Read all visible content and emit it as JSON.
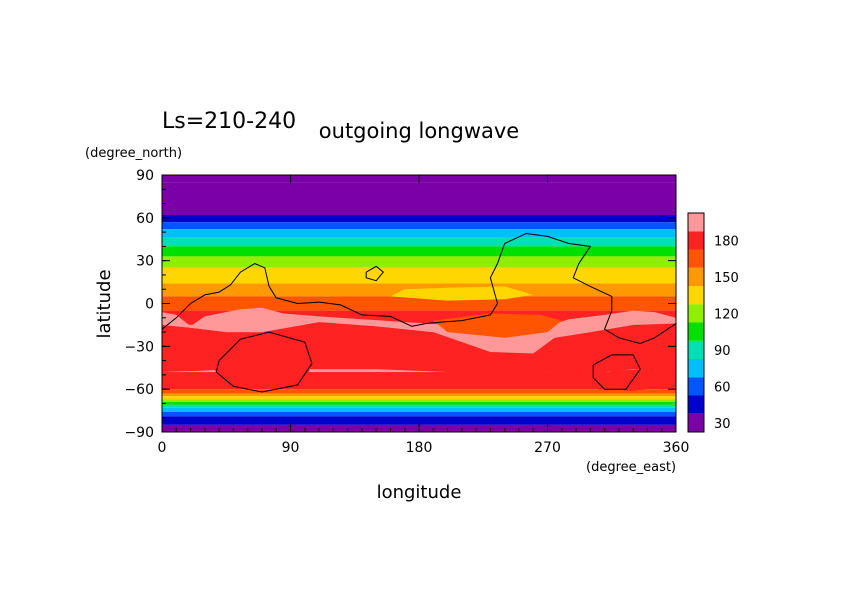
{
  "chart_data": {
    "type": "heatmap",
    "title_left": "Ls=210-240",
    "title": "outgoing longwave",
    "xlabel": "longitude",
    "ylabel": "latitude",
    "xunit": "(degree_east)",
    "yunit": "(degree_north)",
    "xlim": [
      0,
      360
    ],
    "ylim": [
      -90,
      90
    ],
    "xticks": [
      "0",
      "90",
      "180",
      "270",
      "360"
    ],
    "yticks": [
      "90",
      "60",
      "30",
      "0",
      "−30",
      "−60",
      "−90"
    ],
    "colorbar": {
      "ticks": [
        "30",
        "60",
        "90",
        "120",
        "150",
        "180"
      ],
      "levels": [
        15,
        30,
        45,
        60,
        75,
        90,
        105,
        120,
        135,
        150,
        165,
        180,
        195
      ],
      "colors": [
        "#7b00a8",
        "#0000cc",
        "#0055ff",
        "#00bfff",
        "#00e0b0",
        "#00e000",
        "#90ee00",
        "#ffd700",
        "#ff9900",
        "#ff5500",
        "#ff2222",
        "#ff9999"
      ]
    },
    "bands": [
      {
        "level": 15,
        "lat_top": 90,
        "lat_bottom": 85
      },
      {
        "level": 15,
        "lat_top": 85,
        "lat_bottom": 62
      },
      {
        "level": 30,
        "lat_top": 62,
        "lat_bottom": 57
      },
      {
        "level": 45,
        "lat_top": 57,
        "lat_bottom": 52
      },
      {
        "level": 60,
        "lat_top": 52,
        "lat_bottom": 46
      },
      {
        "level": 75,
        "lat_top": 46,
        "lat_bottom": 40
      },
      {
        "level": 90,
        "lat_top": 40,
        "lat_bottom": 33
      },
      {
        "level": 105,
        "lat_top": 33,
        "lat_bottom": 25
      },
      {
        "level": 120,
        "lat_top": 25,
        "lat_bottom": 14
      },
      {
        "level": 135,
        "lat_top": 14,
        "lat_bottom": 5
      },
      {
        "level": 150,
        "lat_top": 5,
        "lat_bottom": -5
      },
      {
        "level": 165,
        "lat_top": -5,
        "lat_bottom": -15
      },
      {
        "level": 180,
        "lat_top": -15,
        "lat_bottom": -48
      },
      {
        "level": 165,
        "lat_top": -48,
        "lat_bottom": -60
      },
      {
        "level": 150,
        "lat_top": -60,
        "lat_bottom": -63
      },
      {
        "level": 135,
        "lat_top": -63,
        "lat_bottom": -65
      },
      {
        "level": 120,
        "lat_top": -65,
        "lat_bottom": -67
      },
      {
        "level": 105,
        "lat_top": -67,
        "lat_bottom": -69
      },
      {
        "level": 90,
        "lat_top": -69,
        "lat_bottom": -71
      },
      {
        "level": 75,
        "lat_top": -71,
        "lat_bottom": -73
      },
      {
        "level": 60,
        "lat_top": -73,
        "lat_bottom": -76
      },
      {
        "level": 45,
        "lat_top": -76,
        "lat_bottom": -79
      },
      {
        "level": 30,
        "lat_top": -79,
        "lat_bottom": -85
      },
      {
        "level": 15,
        "lat_top": -85,
        "lat_bottom": -90
      }
    ],
    "features": [
      {
        "level": 165,
        "points": [
          [
            0,
            -15
          ],
          [
            20,
            -17
          ],
          [
            45,
            -20
          ],
          [
            70,
            -20
          ],
          [
            110,
            -13
          ],
          [
            150,
            -16
          ],
          [
            190,
            -20
          ],
          [
            230,
            -23
          ],
          [
            260,
            -22
          ],
          [
            275,
            -24
          ],
          [
            300,
            -20
          ],
          [
            330,
            -15
          ],
          [
            360,
            -12
          ],
          [
            360,
            -48
          ],
          [
            330,
            -46
          ],
          [
            300,
            -49
          ],
          [
            270,
            -48
          ],
          [
            240,
            -52
          ],
          [
            200,
            -48
          ],
          [
            150,
            -46
          ],
          [
            100,
            -46
          ],
          [
            60,
            -45
          ],
          [
            30,
            -47
          ],
          [
            0,
            -48
          ]
        ]
      },
      {
        "level": 180,
        "points": [
          [
            0,
            -6
          ],
          [
            10,
            -8
          ],
          [
            20,
            -16
          ],
          [
            30,
            -9
          ],
          [
            55,
            -4
          ],
          [
            70,
            -3
          ],
          [
            85,
            -7
          ],
          [
            110,
            -9
          ],
          [
            140,
            -11
          ],
          [
            170,
            -13
          ],
          [
            200,
            -15
          ],
          [
            230,
            -18
          ],
          [
            260,
            -19
          ],
          [
            285,
            -11
          ],
          [
            310,
            -8
          ],
          [
            330,
            -5
          ],
          [
            345,
            -6
          ],
          [
            360,
            -10
          ],
          [
            360,
            -14
          ],
          [
            330,
            -15
          ],
          [
            300,
            -20
          ],
          [
            275,
            -24
          ],
          [
            260,
            -35
          ],
          [
            230,
            -34
          ],
          [
            190,
            -20
          ],
          [
            150,
            -16
          ],
          [
            110,
            -13
          ],
          [
            70,
            -20
          ],
          [
            45,
            -20
          ],
          [
            20,
            -17
          ],
          [
            0,
            -15
          ]
        ]
      },
      {
        "level": 165,
        "points": [
          [
            35,
            -45
          ],
          [
            55,
            -33
          ],
          [
            80,
            -35
          ],
          [
            105,
            -42
          ],
          [
            100,
            -55
          ],
          [
            70,
            -60
          ],
          [
            45,
            -55
          ]
        ]
      },
      {
        "level": 165,
        "points": [
          [
            300,
            -55
          ],
          [
            315,
            -47
          ],
          [
            345,
            -46
          ],
          [
            360,
            -48
          ],
          [
            360,
            -58
          ],
          [
            330,
            -61
          ],
          [
            305,
            -60
          ]
        ]
      },
      {
        "level": 150,
        "points": [
          [
            190,
            -12
          ],
          [
            230,
            -7
          ],
          [
            265,
            -8
          ],
          [
            280,
            -12
          ],
          [
            270,
            -20
          ],
          [
            240,
            -24
          ],
          [
            200,
            -20
          ]
        ]
      },
      {
        "level": 120,
        "points": [
          [
            160,
            5
          ],
          [
            200,
            2
          ],
          [
            240,
            3
          ],
          [
            260,
            6
          ],
          [
            240,
            12
          ],
          [
            200,
            11
          ],
          [
            170,
            10
          ]
        ]
      }
    ],
    "contours": [
      [
        [
          0,
          -18
        ],
        [
          10,
          -10
        ],
        [
          20,
          0
        ],
        [
          30,
          6
        ],
        [
          40,
          8
        ],
        [
          48,
          13
        ],
        [
          55,
          22
        ],
        [
          65,
          28
        ],
        [
          72,
          25
        ],
        [
          75,
          12
        ],
        [
          80,
          4
        ],
        [
          95,
          0
        ],
        [
          110,
          1
        ],
        [
          125,
          -1
        ],
        [
          140,
          -8
        ],
        [
          160,
          -9
        ],
        [
          175,
          -16
        ],
        [
          185,
          -14
        ],
        [
          195,
          -13
        ],
        [
          210,
          -12
        ],
        [
          230,
          -8
        ],
        [
          235,
          0
        ],
        [
          230,
          18
        ],
        [
          235,
          28
        ],
        [
          240,
          42
        ],
        [
          255,
          49
        ],
        [
          270,
          47
        ],
        [
          285,
          42
        ],
        [
          300,
          40
        ],
        [
          292,
          28
        ],
        [
          288,
          18
        ],
        [
          300,
          12
        ],
        [
          315,
          5
        ],
        [
          315,
          -5
        ],
        [
          310,
          -18
        ],
        [
          320,
          -24
        ],
        [
          335,
          -28
        ],
        [
          345,
          -24
        ],
        [
          360,
          -14
        ]
      ],
      [
        [
          40,
          -40
        ],
        [
          55,
          -25
        ],
        [
          75,
          -20
        ],
        [
          100,
          -27
        ],
        [
          105,
          -42
        ],
        [
          95,
          -57
        ],
        [
          70,
          -62
        ],
        [
          50,
          -58
        ],
        [
          38,
          -48
        ],
        [
          40,
          -40
        ]
      ],
      [
        [
          143,
          22
        ],
        [
          150,
          26
        ],
        [
          155,
          22
        ],
        [
          150,
          16
        ],
        [
          143,
          18
        ],
        [
          143,
          22
        ]
      ],
      [
        [
          302,
          -43
        ],
        [
          315,
          -36
        ],
        [
          330,
          -36
        ],
        [
          335,
          -46
        ],
        [
          325,
          -60
        ],
        [
          310,
          -60
        ],
        [
          302,
          -52
        ],
        [
          302,
          -43
        ]
      ]
    ]
  }
}
